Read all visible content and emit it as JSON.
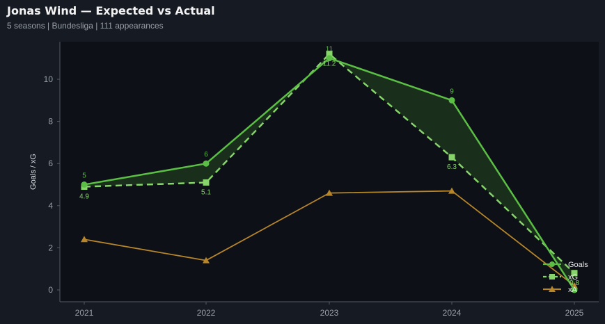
{
  "header": {
    "title": "Jonas Wind — Expected vs Actual",
    "subtitle": "5 seasons | Bundesliga | 111 appearances"
  },
  "colors": {
    "goals": "#5cbf45",
    "xg": "#86d46a",
    "xa": "#b7852a",
    "fill": "#1e3a1e",
    "plot_bg": "#0d1016",
    "axis": "#555b66"
  },
  "chart_data": {
    "type": "line",
    "x": [
      "2021",
      "2022",
      "2023",
      "2024",
      "2025"
    ],
    "series": [
      {
        "name": "Goals",
        "values": [
          5,
          6,
          11,
          9,
          0
        ],
        "labels": [
          "5",
          "6",
          "11",
          "9",
          ""
        ],
        "marker": "circle",
        "dash": "solid"
      },
      {
        "name": "xG",
        "values": [
          4.9,
          5.1,
          11.2,
          6.3,
          0.8
        ],
        "labels": [
          "4.9",
          "5.1",
          "11.2",
          "6.3",
          "0.8"
        ],
        "marker": "square",
        "dash": "dashed"
      },
      {
        "name": "xA",
        "values": [
          2.4,
          1.4,
          4.6,
          4.7,
          0.2
        ],
        "labels": [],
        "marker": "triangle",
        "dash": "solid"
      }
    ],
    "title": "Jonas Wind — Expected vs Actual",
    "xlabel": "",
    "ylabel": "Goals / xG",
    "ylim": [
      -0.55,
      11.7
    ],
    "yticks": [
      0,
      2,
      4,
      6,
      8,
      10
    ],
    "grid": false,
    "legend": "bottom-right",
    "fill_between": [
      "Goals",
      "xG"
    ]
  }
}
